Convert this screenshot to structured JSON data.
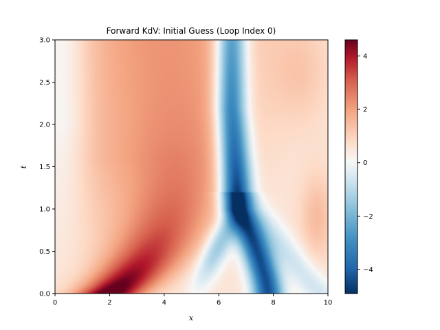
{
  "chart_data": {
    "type": "heatmap",
    "title": "Forward KdV: Initial Guess (Loop Index 0)",
    "xlabel": "x",
    "ylabel": "t",
    "xlim": [
      0,
      10
    ],
    "ylim": [
      0,
      3
    ],
    "x_ticks": [
      0,
      2,
      4,
      6,
      8,
      10
    ],
    "x_tick_labels": [
      "0",
      "2",
      "4",
      "6",
      "8",
      "10"
    ],
    "y_ticks": [
      0.0,
      0.5,
      1.0,
      1.5,
      2.0,
      2.5,
      3.0
    ],
    "y_tick_labels": [
      "0.0",
      "0.5",
      "1.0",
      "1.5",
      "2.0",
      "2.5",
      "3.0"
    ],
    "colormap": "RdBu_r",
    "color_range": [
      -4.9,
      4.6
    ],
    "colorbar": {
      "ticks": [
        4,
        2,
        0,
        -2,
        -4
      ],
      "tick_labels": [
        "4",
        "2",
        "0",
        "−2",
        "−4"
      ]
    },
    "grid": false,
    "features": [
      {
        "kind": "positive_ridge",
        "path_x_t": [
          [
            2.0,
            0.0
          ],
          [
            3.2,
            0.5
          ],
          [
            3.9,
            1.0
          ],
          [
            4.3,
            1.5
          ],
          [
            4.4,
            2.0
          ]
        ],
        "peak": 4.6
      },
      {
        "kind": "negative_trough",
        "path_x_t": [
          [
            7.8,
            0.0
          ],
          [
            7.6,
            0.5
          ],
          [
            6.7,
            1.0
          ],
          [
            6.5,
            1.5
          ],
          [
            6.4,
            2.0
          ],
          [
            6.4,
            3.0
          ]
        ],
        "peak": -4.9
      },
      {
        "kind": "negative_branch",
        "path_x_t": [
          [
            5.2,
            0.1
          ],
          [
            6.0,
            0.6
          ],
          [
            6.6,
            1.0
          ]
        ],
        "peak": -2.5
      }
    ]
  }
}
